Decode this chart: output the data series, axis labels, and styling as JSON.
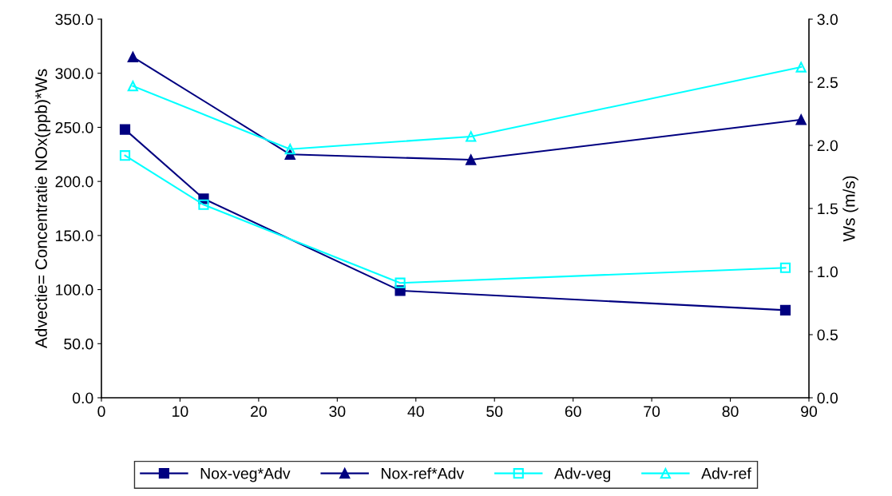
{
  "chart_data": {
    "type": "line",
    "ylabel": "Advectie= Concentratie NOx(ppb)*Ws",
    "y2label": "Ws (m/s)",
    "xlim": [
      0,
      90
    ],
    "xticks": [
      0,
      10,
      20,
      30,
      40,
      50,
      60,
      70,
      80,
      90
    ],
    "ylim": [
      0,
      350
    ],
    "yticks": [
      {
        "value": 0,
        "label": "0.0"
      },
      {
        "value": 50,
        "label": "50.0"
      },
      {
        "value": 100,
        "label": "100.0"
      },
      {
        "value": 150,
        "label": "150.0"
      },
      {
        "value": 200,
        "label": "200.0"
      },
      {
        "value": 250,
        "label": "250.0"
      },
      {
        "value": 300,
        "label": "300.0"
      },
      {
        "value": 350,
        "label": "350.0"
      }
    ],
    "y2lim": [
      0,
      3
    ],
    "y2ticks": [
      {
        "value": 0,
        "label": "0.0"
      },
      {
        "value": 0.5,
        "label": "0.5"
      },
      {
        "value": 1,
        "label": "1.0"
      },
      {
        "value": 1.5,
        "label": "1.5"
      },
      {
        "value": 2,
        "label": "2.0"
      },
      {
        "value": 2.5,
        "label": "2.5"
      },
      {
        "value": 3,
        "label": "3.0"
      }
    ],
    "grid": false,
    "legend": "bottom",
    "line_style": "solid",
    "series": [
      {
        "name": "Nox-veg*Adv",
        "color": "#000080",
        "marker": "square",
        "x": [
          3,
          13,
          38,
          87
        ],
        "values": [
          248,
          184,
          99,
          81
        ]
      },
      {
        "name": "Nox-ref*Adv",
        "color": "#000080",
        "marker": "triangle",
        "x": [
          4,
          24,
          47,
          89
        ],
        "values": [
          315,
          225,
          220,
          257
        ]
      },
      {
        "name": "Adv-veg",
        "color": "#00ffff",
        "marker": "square",
        "axis": "y2",
        "x": [
          3,
          13,
          38,
          87
        ],
        "values": [
          1.92,
          1.53,
          0.91,
          1.03
        ]
      },
      {
        "name": "Adv-ref",
        "color": "#00ffff",
        "marker": "triangle",
        "axis": "y2",
        "x": [
          4,
          24,
          47,
          89
        ],
        "values": [
          2.47,
          1.97,
          2.07,
          2.62
        ]
      }
    ]
  }
}
